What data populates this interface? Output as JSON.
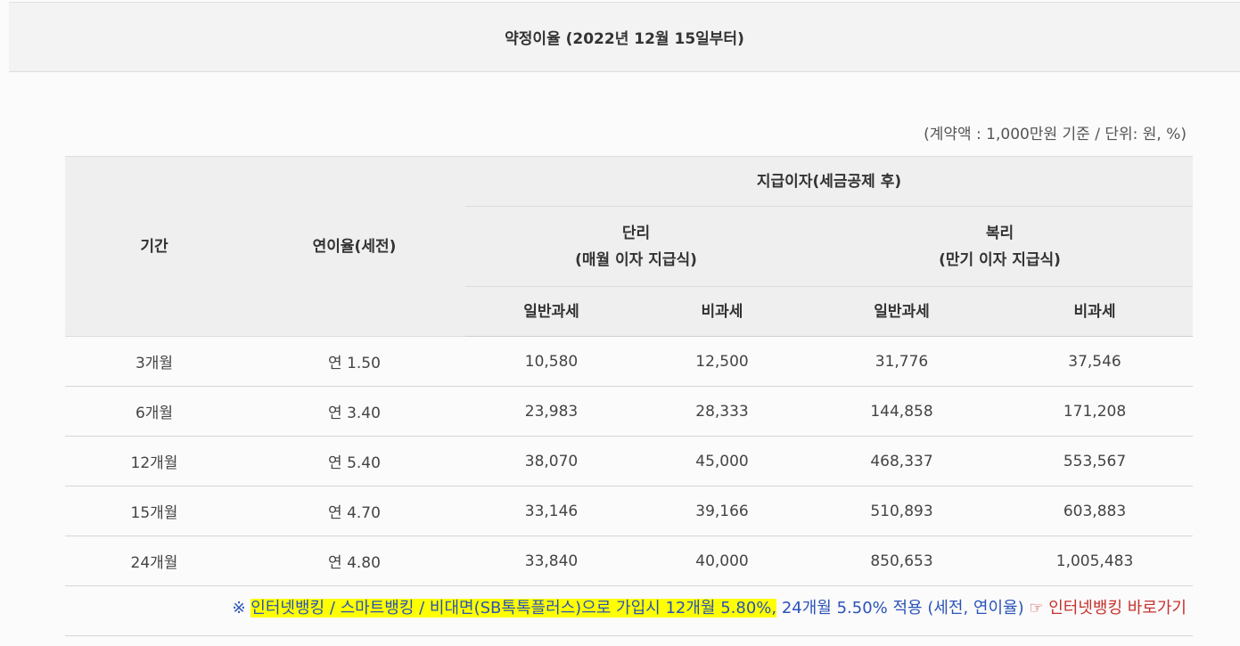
{
  "header": {
    "title": "약정이율 (2022년 12월 15일부터)"
  },
  "unit_note": "(계약액 : 1,000만원 기준 / 단위: 원, %)",
  "table": {
    "headers": {
      "period": "기간",
      "rate": "연이율(세전)",
      "interest_after_tax": "지급이자(세금공제 후)",
      "simple": "단리",
      "simple_sub": "(매월 이자 지급식)",
      "compound": "복리",
      "compound_sub": "(만기 이자 지급식)",
      "general_tax_1": "일반과세",
      "tax_free_1": "비과세",
      "general_tax_2": "일반과세",
      "tax_free_2": "비과세"
    },
    "rows": [
      {
        "period": "3개월",
        "rate": "연 1.50",
        "simple_general": "10,580",
        "simple_free": "12,500",
        "compound_general": "31,776",
        "compound_free": "37,546"
      },
      {
        "period": "6개월",
        "rate": "연 3.40",
        "simple_general": "23,983",
        "simple_free": "28,333",
        "compound_general": "144,858",
        "compound_free": "171,208"
      },
      {
        "period": "12개월",
        "rate": "연 5.40",
        "simple_general": "38,070",
        "simple_free": "45,000",
        "compound_general": "468,337",
        "compound_free": "553,567"
      },
      {
        "period": "15개월",
        "rate": "연 4.70",
        "simple_general": "33,146",
        "simple_free": "39,166",
        "compound_general": "510,893",
        "compound_free": "603,883"
      },
      {
        "period": "24개월",
        "rate": "연 4.80",
        "simple_general": "33,840",
        "simple_free": "40,000",
        "compound_general": "850,653",
        "compound_free": "1,005,483"
      }
    ]
  },
  "footnote": {
    "symbol": "※",
    "highlighted": "인터넷뱅킹 / 스마트뱅킹 / 비대면(SB톡톡플러스)으로 가입시 12개월 5.80%,",
    "rest": "24개월 5.50% 적용 (세전, 연이율)",
    "hand_icon": "☞",
    "link_label": "인터넷뱅킹 바로가기"
  },
  "colors": {
    "highlight": "#ffff00",
    "note_blue": "#2a53b8",
    "link_red": "#c8302c",
    "header_bg": "#efefef"
  }
}
